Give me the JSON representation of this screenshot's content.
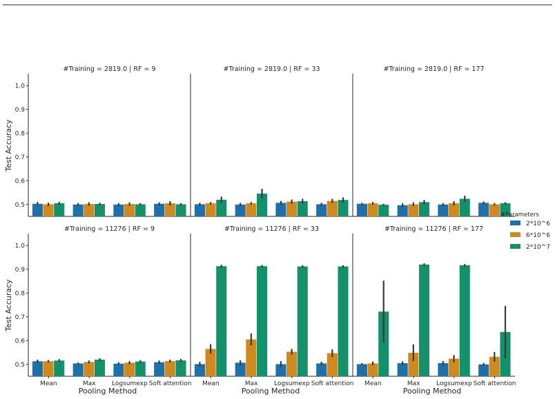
{
  "colors": {
    "series": [
      "#1f6fa8",
      "#cf8a1f",
      "#14906b"
    ],
    "axis": "#262626",
    "errorbar": "#3a3a3a"
  },
  "legend": {
    "title": "#Parameters",
    "entries": [
      "2*10^6",
      "6*10^6",
      "2*10^7"
    ],
    "placement": "right"
  },
  "axes_labels": {
    "ylabel": "Test Accuracy",
    "xlabel": "Pooling Method"
  },
  "chart_data": {
    "type": "bar",
    "layout": "grid 2 rows x 3 columns, shared y axis",
    "categories": [
      "Mean",
      "Max",
      "Logsumexp",
      "Soft attention"
    ],
    "series_names": [
      "2*10^6",
      "6*10^6",
      "2*10^7"
    ],
    "ylim": [
      0.45,
      1.05
    ],
    "yticks": [
      "0.5",
      "0.6",
      "0.7",
      "0.8",
      "0.9",
      "1.0"
    ],
    "ylabel": "Test Accuracy",
    "xlabel": "Pooling Method",
    "panels": [
      {
        "title": "#Training = 2819.0 | RF = 9",
        "values": [
          [
            0.503,
            0.501,
            0.505
          ],
          [
            0.5,
            0.502,
            0.502
          ],
          [
            0.5,
            0.502,
            0.501
          ],
          [
            0.503,
            0.505,
            0.501
          ]
        ],
        "errors": [
          [
            0.008,
            0.007,
            0.006
          ],
          [
            0.006,
            0.007,
            0.005
          ],
          [
            0.006,
            0.007,
            0.005
          ],
          [
            0.006,
            0.009,
            0.005
          ]
        ]
      },
      {
        "title": "#Training = 2819.0 | RF = 33",
        "values": [
          [
            0.501,
            0.505,
            0.52
          ],
          [
            0.5,
            0.505,
            0.546
          ],
          [
            0.507,
            0.512,
            0.514
          ],
          [
            0.501,
            0.515,
            0.519
          ]
        ],
        "errors": [
          [
            0.006,
            0.005,
            0.013
          ],
          [
            0.007,
            0.005,
            0.02
          ],
          [
            0.008,
            0.009,
            0.01
          ],
          [
            0.006,
            0.009,
            0.011
          ]
        ]
      },
      {
        "title": "#Training = 2819.0 | RF = 177",
        "values": [
          [
            0.503,
            0.505,
            0.499
          ],
          [
            0.497,
            0.501,
            0.51
          ],
          [
            0.5,
            0.505,
            0.524
          ],
          [
            0.507,
            0.501,
            0.505
          ]
        ],
        "errors": [
          [
            0.004,
            0.006,
            0.004
          ],
          [
            0.008,
            0.008,
            0.009
          ],
          [
            0.006,
            0.009,
            0.013
          ],
          [
            0.006,
            0.005,
            0.005
          ]
        ]
      },
      {
        "title": "#Training = 11276 | RF = 9",
        "values": [
          [
            0.513,
            0.513,
            0.516
          ],
          [
            0.504,
            0.51,
            0.52
          ],
          [
            0.503,
            0.507,
            0.512
          ],
          [
            0.509,
            0.514,
            0.517
          ]
        ],
        "errors": [
          [
            0.007,
            0.005,
            0.006
          ],
          [
            0.004,
            0.006,
            0.006
          ],
          [
            0.006,
            0.007,
            0.006
          ],
          [
            0.007,
            0.006,
            0.006
          ]
        ]
      },
      {
        "title": "#Training = 11276 | RF = 33",
        "values": [
          [
            0.501,
            0.565,
            0.913
          ],
          [
            0.507,
            0.605,
            0.913
          ],
          [
            0.501,
            0.553,
            0.912
          ],
          [
            0.504,
            0.547,
            0.912
          ]
        ],
        "errors": [
          [
            0.01,
            0.02,
            0.006
          ],
          [
            0.01,
            0.025,
            0.005
          ],
          [
            0.013,
            0.012,
            0.005
          ],
          [
            0.007,
            0.016,
            0.005
          ]
        ]
      },
      {
        "title": "#Training = 11276 | RF = 177",
        "values": [
          [
            0.501,
            0.504,
            0.722
          ],
          [
            0.505,
            0.549,
            0.92
          ],
          [
            0.505,
            0.524,
            0.917
          ],
          [
            0.5,
            0.532,
            0.636
          ]
        ],
        "errors": [
          [
            0.004,
            0.008,
            0.13
          ],
          [
            0.008,
            0.035,
            0.005
          ],
          [
            0.009,
            0.015,
            0.005
          ],
          [
            0.006,
            0.02,
            0.11
          ]
        ]
      }
    ]
  }
}
